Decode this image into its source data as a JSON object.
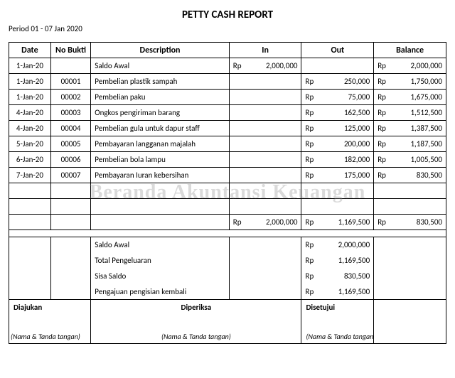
{
  "title": "PETTY CASH REPORT",
  "period": "Period 01 - 07 Jan 2020",
  "watermark": "Beranda Akuntansi Keuangan",
  "currency": "Rp",
  "headers": {
    "date": "Date",
    "no_bukti": "No Bukti",
    "description": "Description",
    "in": "In",
    "out": "Out",
    "balance": "Balance"
  },
  "rows": [
    {
      "date": "1-Jan-20",
      "bukti": "",
      "desc": "Saldo Awal",
      "in": "2,000,000",
      "out": "",
      "bal": "2,000,000"
    },
    {
      "date": "1-Jan-20",
      "bukti": "00001",
      "desc": "Pembelian plastik sampah",
      "in": "",
      "out": "250,000",
      "bal": "1,750,000"
    },
    {
      "date": "1-Jan-20",
      "bukti": "00002",
      "desc": "Pembelian paku",
      "in": "",
      "out": "75,000",
      "bal": "1,675,000"
    },
    {
      "date": "4-Jan-20",
      "bukti": "00003",
      "desc": "Ongkos pengiriman barang",
      "in": "",
      "out": "162,500",
      "bal": "1,512,500"
    },
    {
      "date": "4-Jan-20",
      "bukti": "00004",
      "desc": "Pembelian gula untuk dapur staff",
      "in": "",
      "out": "125,000",
      "bal": "1,387,500"
    },
    {
      "date": "5-Jan-20",
      "bukti": "00005",
      "desc": "Pembayaran langganan majalah",
      "in": "",
      "out": "200,000",
      "bal": "1,187,500"
    },
    {
      "date": "6-Jan-20",
      "bukti": "00006",
      "desc": "Pembelian bola lampu",
      "in": "",
      "out": "182,000",
      "bal": "1,005,500"
    },
    {
      "date": "7-Jan-20",
      "bukti": "00007",
      "desc": "Pembayaran Iuran kebersihan",
      "in": "",
      "out": "175,000",
      "bal": "830,500"
    }
  ],
  "totals": {
    "in": "2,000,000",
    "out": "1,169,500",
    "bal": "830,500"
  },
  "summary": [
    {
      "label": "Saldo Awal",
      "value": "2,000,000"
    },
    {
      "label": "Total Pengeluaran",
      "value": "1,169,500"
    },
    {
      "label": "Sisa Saldo",
      "value": "830,500"
    },
    {
      "label": "Pengajuan pengisian kembali",
      "value": "1,169,500"
    }
  ],
  "signatures": {
    "col1": "Diajukan",
    "col2": "Diperiksa",
    "col3": "Disetujui",
    "label": "(Nama & Tanda tangan)"
  }
}
